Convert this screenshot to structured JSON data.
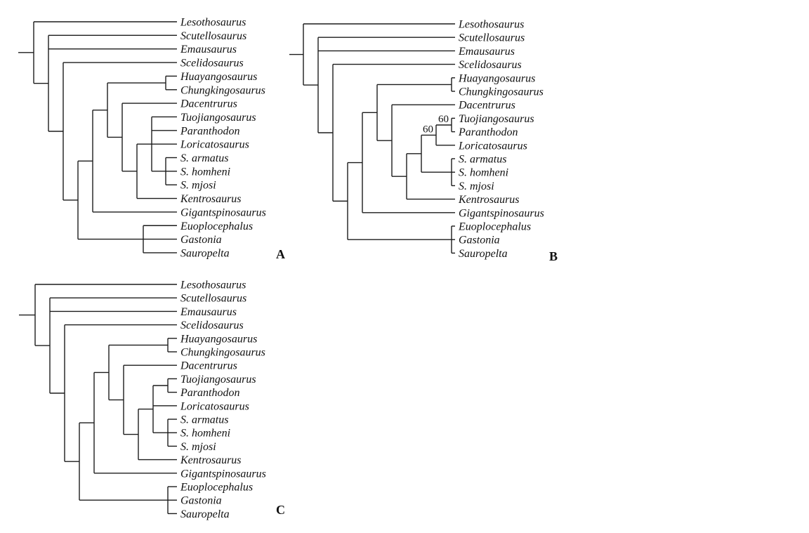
{
  "figure": {
    "type": "phylogenetic-cladograms",
    "background": "#ffffff",
    "line_color": "#1c1c1c",
    "text_color": "#111111",
    "panels": [
      {
        "label": "A",
        "tree": {
          "children": [
            {
              "taxon": "Lesothosaurus"
            },
            {
              "children": [
                {
                  "taxon": "Scutellosaurus"
                },
                {
                  "taxon": "Emausaurus"
                },
                {
                  "children": [
                    {
                      "taxon": "Scelidosaurus"
                    },
                    {
                      "children": [
                        {
                          "children": [
                            {
                              "children": [
                                {
                                  "children": [
                                    {
                                      "taxon": "Huayangosaurus"
                                    },
                                    {
                                      "taxon": "Chungkingosaurus"
                                    }
                                  ]
                                },
                                {
                                  "children": [
                                    {
                                      "taxon": "Dacentrurus"
                                    },
                                    {
                                      "children": [
                                        {
                                          "children": [
                                            {
                                              "taxon": "Tuojiangosaurus"
                                            },
                                            {
                                              "taxon": "Paranthodon"
                                            },
                                            {
                                              "taxon": "Loricatosaurus"
                                            },
                                            {
                                              "children": [
                                                {
                                                  "taxon": "S. armatus"
                                                },
                                                {
                                                  "taxon": "S. homheni"
                                                },
                                                {
                                                  "taxon": "S. mjosi"
                                                }
                                              ]
                                            }
                                          ]
                                        },
                                        {
                                          "taxon": "Kentrosaurus"
                                        }
                                      ]
                                    }
                                  ]
                                }
                              ]
                            },
                            {
                              "taxon": "Gigantspinosaurus"
                            }
                          ]
                        },
                        {
                          "children": [
                            {
                              "taxon": "Euoplocephalus"
                            },
                            {
                              "taxon": "Gastonia"
                            },
                            {
                              "taxon": "Sauropelta"
                            }
                          ]
                        }
                      ]
                    }
                  ]
                }
              ]
            }
          ]
        }
      },
      {
        "label": "B",
        "tree": {
          "children": [
            {
              "taxon": "Lesothosaurus"
            },
            {
              "children": [
                {
                  "taxon": "Scutellosaurus"
                },
                {
                  "taxon": "Emausaurus"
                },
                {
                  "children": [
                    {
                      "taxon": "Scelidosaurus"
                    },
                    {
                      "children": [
                        {
                          "children": [
                            {
                              "children": [
                                {
                                  "children": [
                                    {
                                      "taxon": "Huayangosaurus"
                                    },
                                    {
                                      "taxon": "Chungkingosaurus"
                                    }
                                  ]
                                },
                                {
                                  "children": [
                                    {
                                      "taxon": "Dacentrurus"
                                    },
                                    {
                                      "children": [
                                        {
                                          "children": [
                                            {
                                              "support": "60",
                                              "children": [
                                                {
                                                  "support": "60",
                                                  "children": [
                                                    {
                                                      "taxon": "Tuojiangosaurus"
                                                    },
                                                    {
                                                      "taxon": "Paranthodon"
                                                    }
                                                  ]
                                                },
                                                {
                                                  "taxon": "Loricatosaurus"
                                                }
                                              ]
                                            },
                                            {
                                              "children": [
                                                {
                                                  "taxon": "S. armatus"
                                                },
                                                {
                                                  "taxon": "S. homheni"
                                                },
                                                {
                                                  "taxon": "S. mjosi"
                                                }
                                              ]
                                            }
                                          ]
                                        },
                                        {
                                          "taxon": "Kentrosaurus"
                                        }
                                      ]
                                    }
                                  ]
                                }
                              ]
                            },
                            {
                              "taxon": "Gigantspinosaurus"
                            }
                          ]
                        },
                        {
                          "children": [
                            {
                              "taxon": "Euoplocephalus"
                            },
                            {
                              "taxon": "Gastonia"
                            },
                            {
                              "taxon": "Sauropelta"
                            }
                          ]
                        }
                      ]
                    }
                  ]
                }
              ]
            }
          ]
        }
      },
      {
        "label": "C",
        "tree": {
          "children": [
            {
              "taxon": "Lesothosaurus"
            },
            {
              "children": [
                {
                  "taxon": "Scutellosaurus"
                },
                {
                  "taxon": "Emausaurus"
                },
                {
                  "children": [
                    {
                      "taxon": "Scelidosaurus"
                    },
                    {
                      "children": [
                        {
                          "children": [
                            {
                              "children": [
                                {
                                  "children": [
                                    {
                                      "taxon": "Huayangosaurus"
                                    },
                                    {
                                      "taxon": "Chungkingosaurus"
                                    }
                                  ]
                                },
                                {
                                  "children": [
                                    {
                                      "taxon": "Dacentrurus"
                                    },
                                    {
                                      "children": [
                                        {
                                          "children": [
                                            {
                                              "children": [
                                                {
                                                  "taxon": "Tuojiangosaurus"
                                                },
                                                {
                                                  "taxon": "Paranthodon"
                                                }
                                              ]
                                            },
                                            {
                                              "taxon": "Loricatosaurus"
                                            },
                                            {
                                              "children": [
                                                {
                                                  "taxon": "S. armatus"
                                                },
                                                {
                                                  "taxon": "S. homheni"
                                                },
                                                {
                                                  "taxon": "S. mjosi"
                                                }
                                              ]
                                            }
                                          ]
                                        },
                                        {
                                          "taxon": "Kentrosaurus"
                                        }
                                      ]
                                    }
                                  ]
                                }
                              ]
                            },
                            {
                              "taxon": "Gigantspinosaurus"
                            }
                          ]
                        },
                        {
                          "children": [
                            {
                              "taxon": "Euoplocephalus"
                            },
                            {
                              "taxon": "Gastonia"
                            },
                            {
                              "taxon": "Sauropelta"
                            }
                          ]
                        }
                      ]
                    }
                  ]
                }
              ]
            }
          ]
        }
      }
    ]
  },
  "chart_data": {
    "type": "cladogram",
    "taxa_top_to_bottom": [
      "Lesothosaurus",
      "Scutellosaurus",
      "Emausaurus",
      "Scelidosaurus",
      "Huayangosaurus",
      "Chungkingosaurus",
      "Dacentrurus",
      "Tuojiangosaurus",
      "Paranthodon",
      "Loricatosaurus",
      "S. armatus",
      "S. homheni",
      "S. mjosi",
      "Kentrosaurus",
      "Gigantspinosaurus",
      "Euoplocephalus",
      "Gastonia",
      "Sauropelta"
    ],
    "panel_newicks": {
      "A": "(Lesothosaurus,(Scutellosaurus,Emausaurus,(Scelidosaurus,(((Huayangosaurus,Chungkingosaurus),(Dacentrurus,((Tuojiangosaurus,Paranthodon,Loricatosaurus,(S. armatus,S. homheni,S. mjosi)),Kentrosaurus))),Gigantspinosaurus),(Euoplocephalus,Gastonia,Sauropelta))));",
      "B": "(Lesothosaurus,(Scutellosaurus,Emausaurus,(Scelidosaurus,(((Huayangosaurus,Chungkingosaurus),(Dacentrurus,(((((Tuojiangosaurus,Paranthodon)60,Loricatosaurus)60),(S. armatus,S. homheni,S. mjosi)),Kentrosaurus))),Gigantspinosaurus),(Euoplocephalus,Gastonia,Sauropelta))));",
      "C": "(Lesothosaurus,(Scutellosaurus,Emausaurus,(Scelidosaurus,(((Huayangosaurus,Chungkingosaurus),(Dacentrurus,(((Tuojiangosaurus,Paranthodon),Loricatosaurus,(S. armatus,S. homheni,S. mjosi)),Kentrosaurus))),Gigantspinosaurus),(Euoplocephalus,Gastonia,Sauropelta))));"
    },
    "support_values": {
      "B": [
        "60",
        "60"
      ]
    },
    "panel_labels": [
      "A",
      "B",
      "C"
    ]
  }
}
